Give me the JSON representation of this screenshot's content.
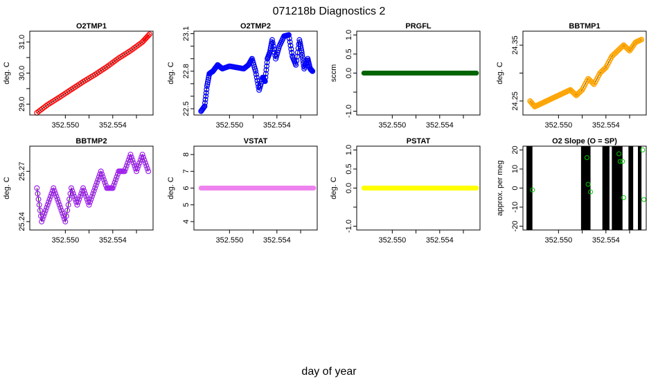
{
  "title": "071218b   Diagnostics 2",
  "xlabel": "day of year",
  "chart_data": [
    {
      "type": "scatter",
      "title": "O2TMP1",
      "ylabel": "deg. C",
      "xlim": [
        352.547,
        352.5574
      ],
      "ylim": [
        28.65,
        31.35
      ],
      "xticks": [
        352.55,
        352.552,
        352.554,
        352.556
      ],
      "xtick_labels": [
        "352.550",
        "",
        "352.554",
        ""
      ],
      "yticks": [
        29.0,
        29.5,
        30.0,
        30.5,
        31.0
      ],
      "ytick_labels": [
        "29.0",
        "",
        "30.0",
        "",
        "31.0"
      ],
      "color": "#ff0000",
      "marker": "circle-line",
      "series": [
        {
          "x": [
            352.5476,
            352.5485,
            352.5495,
            352.5505,
            352.5515,
            352.5525,
            352.5535,
            352.5545,
            352.5555,
            352.5565,
            352.5571
          ],
          "y": [
            28.72,
            28.98,
            29.22,
            29.47,
            29.72,
            29.95,
            30.2,
            30.48,
            30.72,
            31.0,
            31.25
          ]
        }
      ]
    },
    {
      "type": "scatter",
      "title": "O2TMP2",
      "ylabel": "deg. C",
      "xlim": [
        352.547,
        352.5574
      ],
      "ylim": [
        22.45,
        23.12
      ],
      "xticks": [
        352.55,
        352.552,
        352.554,
        352.556
      ],
      "xtick_labels": [
        "352.550",
        "",
        "352.554",
        ""
      ],
      "yticks": [
        22.5,
        22.6,
        22.7,
        22.8,
        22.9,
        23.0,
        23.1
      ],
      "ytick_labels": [
        "22.5",
        "",
        "",
        "22.8",
        "",
        "",
        "23.1"
      ],
      "color": "#0000ff",
      "marker": "circle-line",
      "series": [
        {
          "x": [
            352.5476,
            352.5479,
            352.5481,
            352.5483,
            352.5486,
            352.549,
            352.5494,
            352.55,
            352.5506,
            352.5512,
            352.5516,
            352.5519,
            352.5522,
            352.5525,
            352.5528,
            352.553,
            352.5532,
            352.5534,
            352.5536,
            352.5539,
            352.5542,
            352.5546,
            352.555,
            352.5553,
            352.5556,
            352.5559,
            352.5561,
            352.5563,
            352.5566,
            352.5568,
            352.557
          ],
          "y": [
            22.48,
            22.52,
            22.68,
            22.78,
            22.8,
            22.85,
            22.82,
            22.84,
            22.83,
            22.82,
            22.85,
            22.9,
            22.8,
            22.65,
            22.75,
            22.72,
            22.9,
            22.95,
            23.05,
            22.9,
            23.0,
            23.08,
            23.09,
            22.92,
            22.85,
            23.05,
            22.95,
            22.82,
            22.9,
            22.82,
            22.8
          ]
        }
      ]
    },
    {
      "type": "scatter",
      "title": "PRGFL",
      "ylabel": "sccm",
      "xlim": [
        352.547,
        352.5574
      ],
      "ylim": [
        -1.1,
        1.1
      ],
      "xticks": [
        352.55,
        352.552,
        352.554,
        352.556
      ],
      "xtick_labels": [
        "352.550",
        "",
        "352.554",
        ""
      ],
      "yticks": [
        -1.0,
        -0.5,
        0.0,
        0.5,
        1.0
      ],
      "ytick_labels": [
        "-1.0",
        "",
        "0.0",
        "0.5",
        "1.0"
      ],
      "color": "#006400",
      "marker": "thick-line",
      "series": [
        {
          "x": [
            352.5476,
            352.5571
          ],
          "y": [
            0,
            0
          ]
        }
      ]
    },
    {
      "type": "scatter",
      "title": "BBTMP1",
      "ylabel": "deg. C",
      "xlim": [
        352.547,
        352.5574
      ],
      "ylim": [
        24.225,
        24.375
      ],
      "xticks": [
        352.55,
        352.552,
        352.554,
        352.556
      ],
      "xtick_labels": [
        "352.550",
        "",
        "352.554",
        ""
      ],
      "yticks": [
        24.25,
        24.3,
        24.35
      ],
      "ytick_labels": [
        "24.25",
        "",
        "24.35"
      ],
      "color": "#ffa500",
      "marker": "circle-line",
      "series": [
        {
          "x": [
            352.5476,
            352.548,
            352.5485,
            352.549,
            352.5495,
            352.55,
            352.5505,
            352.551,
            352.5515,
            352.552,
            352.5525,
            352.553,
            352.5535,
            352.554,
            352.5545,
            352.555,
            352.5555,
            352.556,
            352.5565,
            352.557
          ],
          "y": [
            24.25,
            24.24,
            24.245,
            24.25,
            24.255,
            24.26,
            24.265,
            24.27,
            24.26,
            24.27,
            24.29,
            24.28,
            24.3,
            24.31,
            24.33,
            24.34,
            24.35,
            24.34,
            24.355,
            24.36
          ]
        }
      ]
    },
    {
      "type": "scatter",
      "title": "BBTMP2",
      "ylabel": "deg. C",
      "xlim": [
        352.547,
        352.5574
      ],
      "ylim": [
        25.235,
        25.285
      ],
      "xticks": [
        352.55,
        352.552,
        352.554,
        352.556
      ],
      "xtick_labels": [
        "352.550",
        "",
        "352.554",
        ""
      ],
      "yticks": [
        25.24,
        25.27
      ],
      "ytick_labels": [
        "25.24",
        "25.27"
      ],
      "color": "#a020f0",
      "marker": "circle-line",
      "series": [
        {
          "x": [
            352.5476,
            352.548,
            352.5485,
            352.549,
            352.5495,
            352.55,
            352.5505,
            352.551,
            352.5515,
            352.552,
            352.5525,
            352.553,
            352.5535,
            352.554,
            352.5545,
            352.555,
            352.5555,
            352.556,
            352.5565,
            352.557
          ],
          "y": [
            25.26,
            25.24,
            25.25,
            25.26,
            25.25,
            25.24,
            25.26,
            25.25,
            25.26,
            25.25,
            25.26,
            25.27,
            25.26,
            25.26,
            25.27,
            25.27,
            25.28,
            25.27,
            25.28,
            25.27
          ]
        }
      ]
    },
    {
      "type": "scatter",
      "title": "VSTAT",
      "ylabel": "deg. C",
      "xlim": [
        352.547,
        352.5574
      ],
      "ylim": [
        3.5,
        8.5
      ],
      "xticks": [
        352.55,
        352.552,
        352.554,
        352.556
      ],
      "xtick_labels": [
        "352.550",
        "",
        "352.554",
        ""
      ],
      "yticks": [
        4,
        5,
        6,
        7,
        8
      ],
      "ytick_labels": [
        "4",
        "5",
        "6",
        "7",
        "8"
      ],
      "color": "#ee82ee",
      "marker": "thick-line",
      "series": [
        {
          "x": [
            352.5476,
            352.5571
          ],
          "y": [
            6,
            6
          ]
        }
      ]
    },
    {
      "type": "scatter",
      "title": "PSTAT",
      "ylabel": "deg. C",
      "xlim": [
        352.547,
        352.5574
      ],
      "ylim": [
        -1.1,
        1.1
      ],
      "xticks": [
        352.55,
        352.552,
        352.554,
        352.556
      ],
      "xtick_labels": [
        "352.550",
        "",
        "352.554",
        ""
      ],
      "yticks": [
        -1.0,
        -0.5,
        0.0,
        0.5,
        1.0
      ],
      "ytick_labels": [
        "-1.0",
        "",
        "0.0",
        "0.5",
        "1.0"
      ],
      "color": "#ffff00",
      "marker": "thick-line",
      "series": [
        {
          "x": [
            352.5476,
            352.5571
          ],
          "y": [
            0,
            0
          ]
        }
      ]
    },
    {
      "type": "scatter",
      "title": "O2 Slope (O = SP)",
      "ylabel": "approx. per meg",
      "xlim": [
        352.547,
        352.5574
      ],
      "ylim": [
        -22,
        22
      ],
      "xticks": [
        352.55,
        352.552,
        352.554,
        352.556
      ],
      "xtick_labels": [
        "352.550",
        "",
        "352.554",
        ""
      ],
      "yticks": [
        -20,
        -10,
        0,
        10,
        20
      ],
      "ytick_labels": [
        "-20",
        "-10",
        "0",
        "10",
        "20"
      ],
      "color": "#000000",
      "marker": "vertical-bands",
      "bands": [
        [
          352.5473,
          352.5478
        ],
        [
          352.5519,
          352.5527
        ],
        [
          352.5537,
          352.5543
        ],
        [
          352.5545,
          352.5554
        ],
        [
          352.5559,
          352.5563
        ],
        [
          352.5567,
          352.557
        ]
      ],
      "series": [
        {
          "name": "SP",
          "color": "#00cc00",
          "x": [
            352.5478,
            352.5524,
            352.5525,
            352.5527,
            352.5551,
            352.5552,
            352.5554,
            352.5555,
            352.5571,
            352.5572
          ],
          "y": [
            -1,
            16,
            2,
            -2,
            18,
            14,
            14,
            -5,
            20,
            -6
          ]
        }
      ]
    }
  ]
}
